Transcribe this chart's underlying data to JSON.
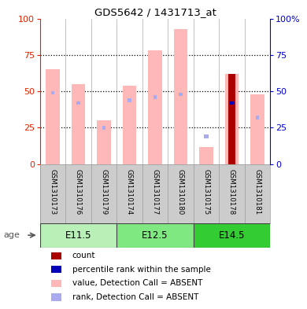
{
  "title": "GDS5642 / 1431713_at",
  "samples": [
    "GSM1310173",
    "GSM1310176",
    "GSM1310179",
    "GSM1310174",
    "GSM1310177",
    "GSM1310180",
    "GSM1310175",
    "GSM1310178",
    "GSM1310181"
  ],
  "age_groups": [
    {
      "label": "E11.5",
      "indices": [
        0,
        1,
        2
      ],
      "color": "#b8f0b8"
    },
    {
      "label": "E12.5",
      "indices": [
        3,
        4,
        5
      ],
      "color": "#80e880"
    },
    {
      "label": "E14.5",
      "indices": [
        6,
        7,
        8
      ],
      "color": "#33cc33"
    }
  ],
  "value_absent": [
    65,
    55,
    30,
    54,
    78,
    93,
    12,
    62,
    48
  ],
  "rank_absent": [
    49,
    42,
    25,
    44,
    46,
    48,
    0,
    41,
    32
  ],
  "count_red": [
    0,
    0,
    0,
    0,
    0,
    0,
    0,
    62,
    0
  ],
  "percentile_blue": [
    0,
    0,
    0,
    0,
    0,
    0,
    0,
    42,
    0
  ],
  "rank_blue_small_val": 19,
  "rank_blue_small_idx": 6,
  "ylim": [
    0,
    100
  ],
  "yticks": [
    0,
    25,
    50,
    75,
    100
  ],
  "colors": {
    "value_absent": "#ffb8b8",
    "rank_absent": "#aaaaee",
    "count_red": "#aa0000",
    "percentile_blue": "#0000bb",
    "rank_blue_small": "#aaaaee",
    "left_axis": "#dd2200",
    "right_axis": "#0000cc",
    "sample_bg": "#cccccc",
    "sample_border": "#999999"
  },
  "legend_items": [
    {
      "color": "#aa0000",
      "label": "count"
    },
    {
      "color": "#0000bb",
      "label": "percentile rank within the sample"
    },
    {
      "color": "#ffb8b8",
      "label": "value, Detection Call = ABSENT"
    },
    {
      "color": "#aaaaee",
      "label": "rank, Detection Call = ABSENT"
    }
  ]
}
